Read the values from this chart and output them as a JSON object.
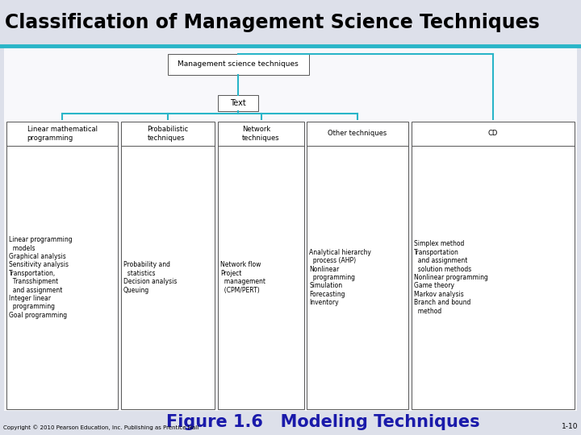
{
  "title": "Classification of Management Science Techniques",
  "figure_caption": "Figure 1.6   Modeling Techniques",
  "copyright": "Copyright © 2010 Pearson Education, Inc. Publishing as Prentice Hall",
  "page_num": "1-10",
  "title_bg": "#dde0ea",
  "teal_line_color": "#29b5c8",
  "diagram_bg": "#eceef4",
  "content_bg": "#f8f8fb",
  "box_bg": "#ffffff",
  "box_border": "#555555",
  "root_node": "Management science techniques",
  "level2_node": "Text",
  "level3_nodes": [
    "Linear mathematical\nprogramming",
    "Probabilistic\ntechniques",
    "Network\ntechniques",
    "Other techniques",
    "CD"
  ],
  "level4_nodes": [
    "Linear programming\n  models\nGraphical analysis\nSensitivity analysis\nTransportation,\n  Transshipment\n  and assignment\nInteger linear\n  programming\nGoal programming",
    "Probability and\n  statistics\nDecision analysis\nQueuing",
    "Network flow\nProject\n  management\n  (CPM/PERT)",
    "Analytical hierarchy\n  process (AHP)\nNonlinear\n  programming\nSimulation\nForecasting\nInventory",
    "Simplex method\nTransportation\n  and assignment\n  solution methods\nNonlinear programming\nGame theory\nMarkov analysis\nBranch and bound\n  method"
  ],
  "connector_color": "#29b5c8",
  "caption_color": "#1a1aaa",
  "caption_fontsize": 15,
  "title_fontsize": 17
}
